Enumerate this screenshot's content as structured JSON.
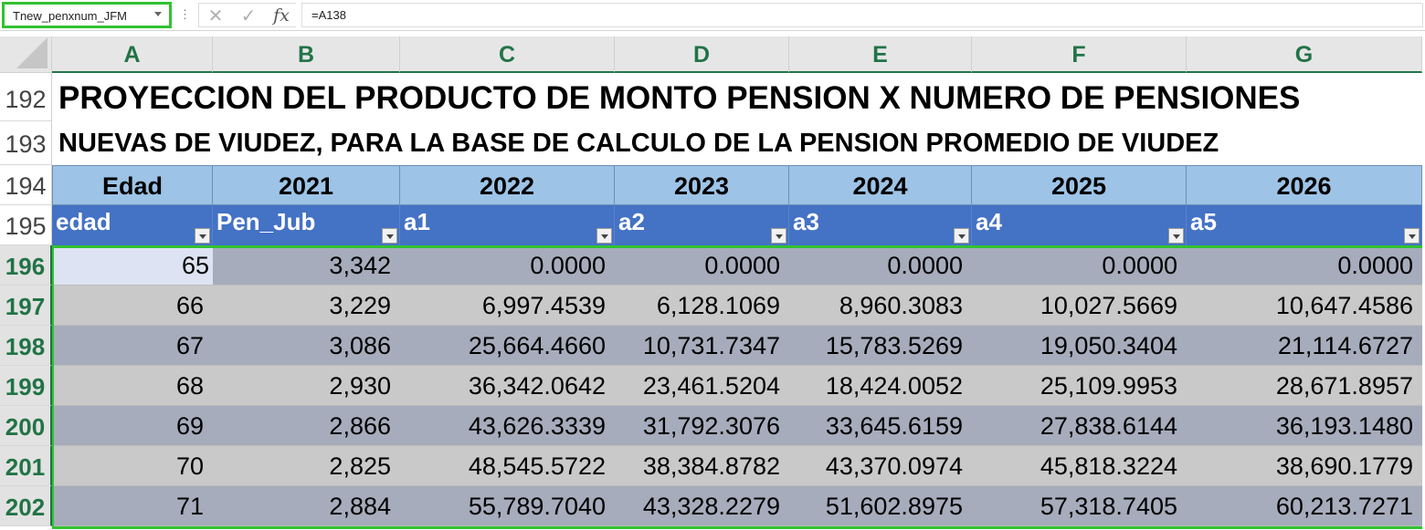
{
  "formula_bar": {
    "name_box": "Tnew_penxnum_JFM",
    "dots": "⋮",
    "cancel_glyph": "✕",
    "enter_glyph": "✓",
    "fx_label": "fx",
    "formula": "=A138"
  },
  "columns": [
    "A",
    "B",
    "C",
    "D",
    "E",
    "F",
    "G"
  ],
  "rows": {
    "r192": "192",
    "r193": "193",
    "r194": "194",
    "r195": "195",
    "r196": "196",
    "r197": "197",
    "r198": "198",
    "r199": "199",
    "r200": "200",
    "r201": "201",
    "r202": "202"
  },
  "titles": {
    "line1": "PROYECCION DEL PRODUCTO DE MONTO PENSION X NUMERO DE PENSIONES",
    "line2": "NUEVAS DE VIUDEZ, PARA LA BASE DE CALCULO DE LA PENSION PROMEDIO DE VIUDEZ"
  },
  "year_header": [
    "Edad",
    "2021",
    "2022",
    "2023",
    "2024",
    "2025",
    "2026"
  ],
  "table_header": [
    "edad",
    "Pen_Jub",
    "a1",
    "a2",
    "a3",
    "a4",
    "a5"
  ],
  "table_rows": [
    [
      "65",
      "3,342",
      "0.0000",
      "0.0000",
      "0.0000",
      "0.0000",
      "0.0000"
    ],
    [
      "66",
      "3,229",
      "6,997.4539",
      "6,128.1069",
      "8,960.3083",
      "10,027.5669",
      "10,647.4586"
    ],
    [
      "67",
      "3,086",
      "25,664.4660",
      "10,731.7347",
      "15,783.5269",
      "19,050.3404",
      "21,114.6727"
    ],
    [
      "68",
      "2,930",
      "36,342.0642",
      "23,461.5204",
      "18,424.0052",
      "25,109.9953",
      "28,671.8957"
    ],
    [
      "69",
      "2,866",
      "43,626.3339",
      "31,792.3076",
      "33,645.6159",
      "27,838.6144",
      "36,193.1480"
    ],
    [
      "70",
      "2,825",
      "48,545.5722",
      "38,384.8782",
      "43,370.0974",
      "45,818.3224",
      "38,690.1779"
    ],
    [
      "71",
      "2,884",
      "55,789.7040",
      "43,328.2279",
      "51,602.8975",
      "57,318.7405",
      "60,213.7271"
    ]
  ],
  "colors": {
    "selection": "#31c231",
    "excel_green": "#217346",
    "year_header_bg": "#9dc3e6",
    "table_header_bg": "#4472c4",
    "band_dark": "#a6acbb",
    "band_light": "#c9c9c9"
  }
}
